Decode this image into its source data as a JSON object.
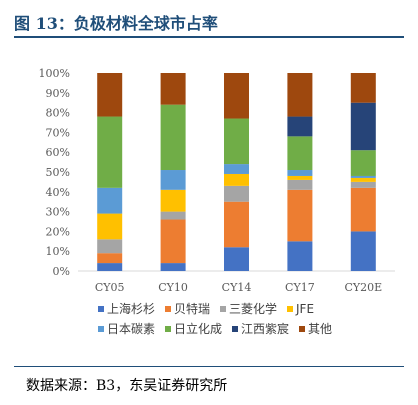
{
  "figure": {
    "title": "图 13：负极材料全球市占率",
    "source": "数据来源：B3，东吴证券研究所"
  },
  "chart_data": {
    "type": "bar",
    "stacked": true,
    "categories": [
      "CY05",
      "CY10",
      "CY14",
      "CY17",
      "CY20E"
    ],
    "ylim": [
      0,
      100
    ],
    "yticks": [
      "0%",
      "10%",
      "20%",
      "30%",
      "40%",
      "50%",
      "60%",
      "70%",
      "80%",
      "90%",
      "100%"
    ],
    "grid": false,
    "legend": "bottom",
    "series": [
      {
        "name": "上海杉杉",
        "color": "#4472c4",
        "values": [
          4,
          4,
          12,
          15,
          20
        ]
      },
      {
        "name": "贝特瑞",
        "color": "#ed7d31",
        "values": [
          5,
          22,
          23,
          26,
          22
        ]
      },
      {
        "name": "三菱化学",
        "color": "#a5a5a5",
        "values": [
          7,
          4,
          8,
          5,
          3
        ]
      },
      {
        "name": "JFE",
        "color": "#ffc000",
        "values": [
          13,
          11,
          6,
          2,
          2
        ]
      },
      {
        "name": "日本碳素",
        "color": "#5b9bd5",
        "values": [
          13,
          10,
          5,
          3,
          1
        ]
      },
      {
        "name": "日立化成",
        "color": "#70ad47",
        "values": [
          36,
          33,
          23,
          17,
          13
        ]
      },
      {
        "name": "江西紫宸",
        "color": "#264478",
        "values": [
          0,
          0,
          0,
          10,
          24
        ]
      },
      {
        "name": "其他",
        "color": "#9e480e",
        "values": [
          22,
          16,
          23,
          22,
          15
        ]
      }
    ]
  }
}
